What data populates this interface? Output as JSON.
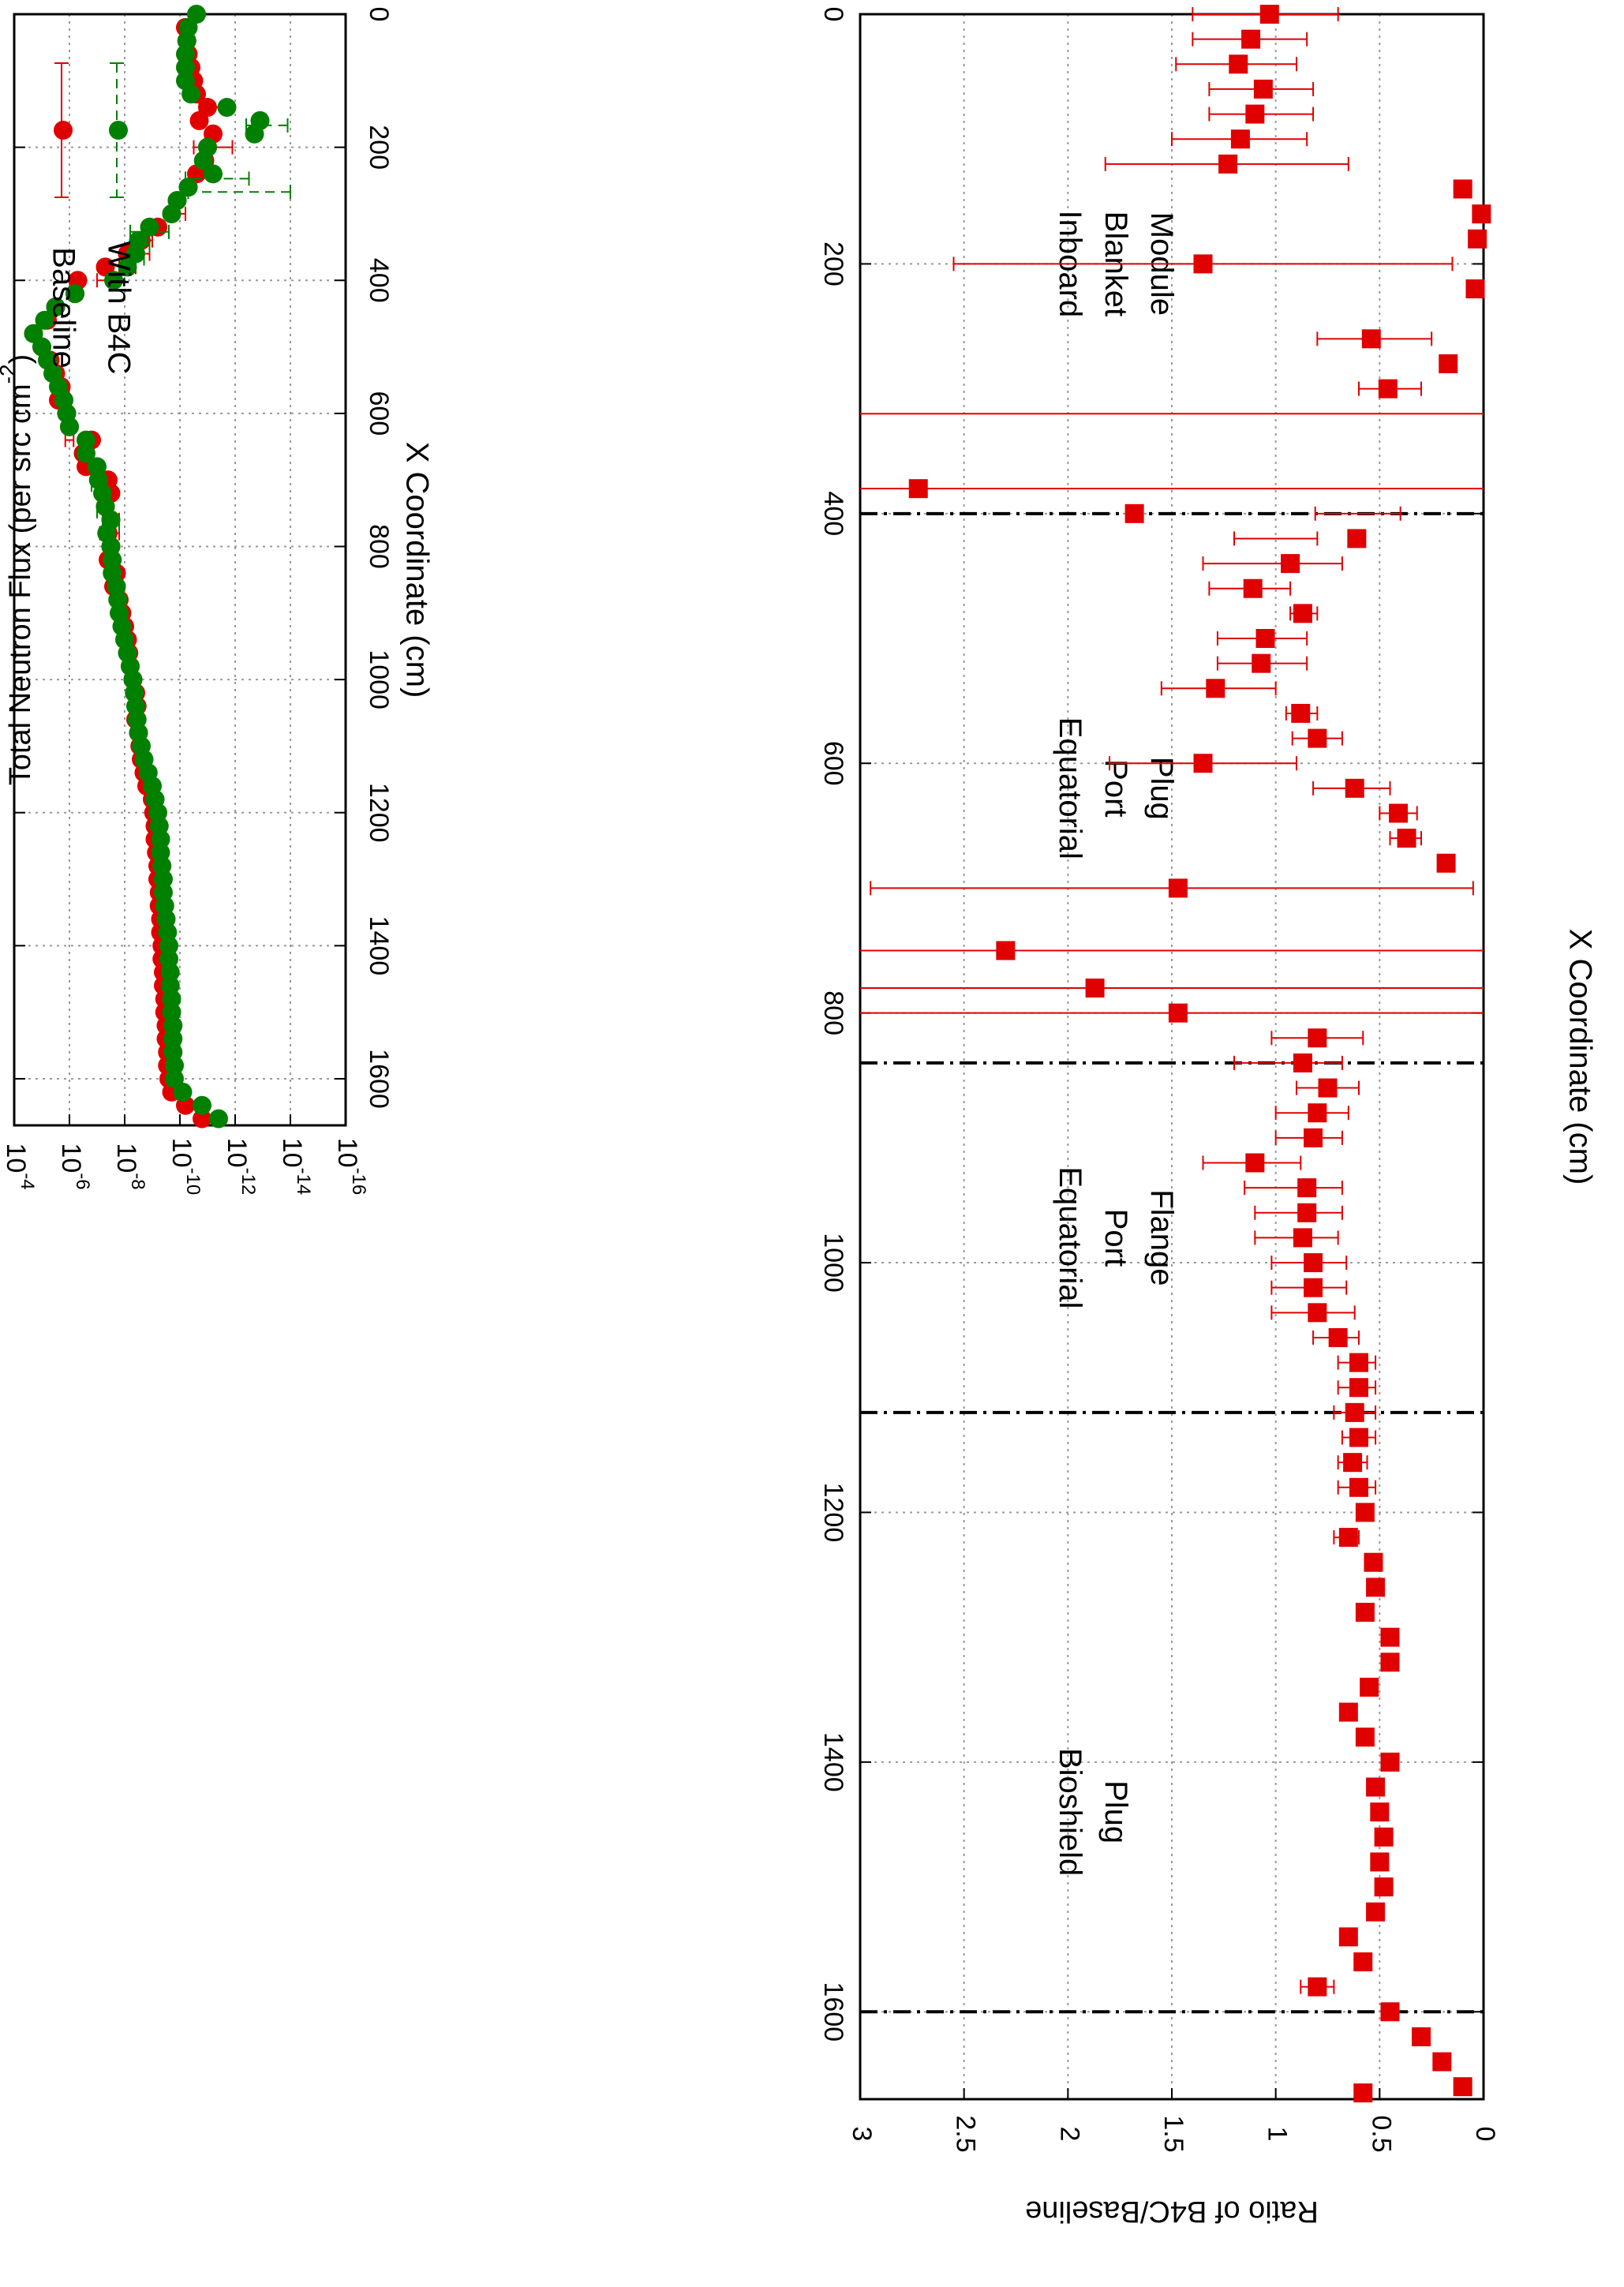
{
  "chart_data": [
    {
      "type": "scatter",
      "orientation": "rotated-90-clockwise",
      "xlabel": "X Coordinate (cm)",
      "ylabel": "Total Neutron Flux (per src cm",
      "ylabel_exp": "-2",
      "ylabel_close": ")",
      "xlim": [
        0,
        1670
      ],
      "ylim_log10": [
        -16,
        -4
      ],
      "y_scale": "log",
      "xticks": [
        "0",
        "200",
        "400",
        "600",
        "800",
        "1000",
        "1200",
        "1400",
        "1600"
      ],
      "yticks": [
        {
          "base": "10",
          "exp": "-16"
        },
        {
          "base": "10",
          "exp": "-14"
        },
        {
          "base": "10",
          "exp": "-12"
        },
        {
          "base": "10",
          "exp": "-10"
        },
        {
          "base": "10",
          "exp": "-8"
        },
        {
          "base": "10",
          "exp": "-6"
        },
        {
          "base": "10",
          "exp": "-4"
        }
      ],
      "grid": true,
      "legend_position": "top-right",
      "series": [
        {
          "name": "Baseline",
          "color": "#e00000",
          "marker": "circle",
          "x": [
            20,
            40,
            60,
            80,
            100,
            120,
            140,
            160,
            180,
            200,
            220,
            240,
            260,
            280,
            300,
            320,
            340,
            360,
            380,
            400,
            420,
            440,
            460,
            480,
            500,
            520,
            540,
            560,
            580,
            600,
            620,
            640,
            660,
            680,
            700,
            720,
            740,
            760,
            780,
            800,
            820,
            840,
            860,
            880,
            900,
            920,
            940,
            960,
            980,
            1000,
            1020,
            1040,
            1060,
            1080,
            1100,
            1120,
            1140,
            1160,
            1180,
            1200,
            1220,
            1240,
            1260,
            1280,
            1300,
            1320,
            1340,
            1360,
            1380,
            1400,
            1420,
            1440,
            1460,
            1480,
            1500,
            1520,
            1540,
            1560,
            1580,
            1600,
            1620,
            1640,
            1660
          ],
          "log10_y": [
            -10.2,
            -10.25,
            -10.3,
            -10.4,
            -10.5,
            -10.6,
            -11.0,
            -10.7,
            -11.2,
            -11.0,
            -10.9,
            -10.6,
            -10.3,
            -9.9,
            -9.7,
            -9.2,
            -8.6,
            -8.1,
            -7.3,
            -6.3,
            -6.2,
            -5.5,
            -5.2,
            -4.7,
            -5.0,
            -5.3,
            -5.5,
            -5.7,
            -5.6,
            -5.9,
            -6.0,
            -6.8,
            -6.5,
            -6.6,
            -7.4,
            -7.5,
            -7.3,
            -7.5,
            -7.4,
            -7.5,
            -7.4,
            -7.7,
            -7.6,
            -7.8,
            -7.9,
            -8.0,
            -8.1,
            -8.15,
            -8.2,
            -8.3,
            -8.4,
            -8.45,
            -8.4,
            -8.5,
            -8.55,
            -8.6,
            -8.7,
            -8.8,
            -9.0,
            -9.05,
            -9.1,
            -9.1,
            -9.15,
            -9.2,
            -9.2,
            -9.25,
            -9.25,
            -9.3,
            -9.3,
            -9.35,
            -9.35,
            -9.4,
            -9.4,
            -9.45,
            -9.45,
            -9.5,
            -9.5,
            -9.55,
            -9.55,
            -9.6,
            -9.7,
            -10.2,
            -10.8
          ],
          "err_x": [
            140,
            200,
            240,
            300,
            320,
            340,
            360,
            380,
            400,
            640,
            660,
            680,
            700,
            720,
            740,
            760,
            780,
            800
          ],
          "err_lo_log10": [
            -11.5,
            -11.9,
            -10.8,
            -10.2,
            -9.4,
            -9.0,
            -8.9,
            -8.4,
            -7.6,
            -6.15,
            -6.7,
            -6.9,
            -7.5,
            -7.6,
            -7.5,
            -7.8,
            -7.8,
            -7.6
          ],
          "err_hi_log10": [
            -10.7,
            -10.5,
            -10.4,
            -9.6,
            -8.9,
            -8.4,
            -8.4,
            -7.8,
            -7.0,
            -5.85,
            -6.3,
            -6.4,
            -7.2,
            -7.4,
            -7.2,
            -7.2,
            -7.1,
            -7.4
          ]
        },
        {
          "name": "With B4C",
          "color": "#008000",
          "marker": "circle",
          "x": [
            0,
            20,
            40,
            60,
            80,
            100,
            120,
            140,
            160,
            180,
            200,
            220,
            240,
            260,
            280,
            300,
            320,
            340,
            360,
            380,
            400,
            420,
            440,
            460,
            480,
            500,
            520,
            540,
            560,
            580,
            600,
            620,
            640,
            660,
            680,
            700,
            720,
            740,
            760,
            780,
            800,
            820,
            840,
            860,
            880,
            900,
            920,
            940,
            960,
            980,
            1000,
            1020,
            1040,
            1060,
            1080,
            1100,
            1120,
            1140,
            1160,
            1180,
            1200,
            1220,
            1240,
            1260,
            1280,
            1300,
            1320,
            1340,
            1360,
            1380,
            1400,
            1420,
            1440,
            1460,
            1480,
            1500,
            1520,
            1540,
            1560,
            1580,
            1600,
            1620,
            1640,
            1660
          ],
          "log10_y": [
            -10.6,
            -10.3,
            -10.25,
            -10.2,
            -10.2,
            -10.2,
            -10.4,
            -11.7,
            -12.9,
            -12.7,
            -11.0,
            -10.85,
            -11.2,
            -10.3,
            -9.9,
            -9.7,
            -8.9,
            -8.5,
            -8.4,
            -8.1,
            -7.6,
            -6.2,
            -5.5,
            -5.1,
            -4.7,
            -5.0,
            -5.2,
            -5.4,
            -5.6,
            -5.8,
            -5.9,
            -6.0,
            -6.6,
            -6.6,
            -7.0,
            -7.05,
            -7.2,
            -7.3,
            -7.5,
            -7.35,
            -7.5,
            -7.55,
            -7.55,
            -7.7,
            -7.75,
            -7.8,
            -7.9,
            -8.0,
            -8.1,
            -8.2,
            -8.3,
            -8.35,
            -8.4,
            -8.45,
            -8.5,
            -8.6,
            -8.7,
            -8.85,
            -9.0,
            -9.1,
            -9.2,
            -9.25,
            -9.3,
            -9.3,
            -9.35,
            -9.4,
            -9.4,
            -9.45,
            -9.5,
            -9.55,
            -9.6,
            -9.6,
            -9.65,
            -9.65,
            -9.7,
            -9.7,
            -9.75,
            -9.75,
            -9.75,
            -9.8,
            -9.8,
            -10.1,
            -10.8,
            -11.4,
            -12.1
          ],
          "err_x": [
            160,
            260,
            240,
            320,
            340,
            360,
            700,
            740,
            760
          ],
          "err_lo_log10": [
            -13.9,
            -14.0,
            -12.5,
            -9.6,
            -8.9,
            -8.7,
            -7.3,
            -7.5,
            -7.8
          ],
          "err_hi_log10": [
            -12.4,
            -10.3,
            -10.2,
            -8.2,
            -8.3,
            -8.1,
            -6.8,
            -7.0,
            -7.2
          ]
        }
      ]
    },
    {
      "type": "scatter",
      "orientation": "rotated-90-clockwise",
      "xlabel": "X Coordinate (cm)",
      "ylabel": "Ratio of B4C/Baseline",
      "xlim": [
        0,
        1670
      ],
      "ylim": [
        0,
        3
      ],
      "xticks": [
        "0",
        "200",
        "400",
        "600",
        "800",
        "1000",
        "1200",
        "1400",
        "1600"
      ],
      "yticks": [
        "0",
        "0.5",
        "1",
        "1.5",
        "2",
        "2.5",
        "3"
      ],
      "grid": true,
      "region_boundaries_x": [
        400,
        840,
        1120,
        1600
      ],
      "region_labels": [
        {
          "lines": [
            "Inboard",
            "Blanket",
            "Module"
          ],
          "x": 200,
          "y": 2.0
        },
        {
          "lines": [
            "Equatorial",
            "Port",
            "Plug"
          ],
          "x": 620,
          "y": 2.0
        },
        {
          "lines": [
            "Equatorial",
            "Port",
            "Flange"
          ],
          "x": 980,
          "y": 2.0
        },
        {
          "lines": [
            "Bioshield",
            "Plug"
          ],
          "x": 1440,
          "y": 2.0
        }
      ],
      "series": [
        {
          "name": "",
          "color": "#e00000",
          "marker": "square",
          "x": [
            0,
            20,
            40,
            60,
            80,
            100,
            120,
            140,
            160,
            180,
            200,
            220,
            260,
            280,
            300,
            380,
            400,
            420,
            440,
            460,
            480,
            500,
            520,
            540,
            560,
            580,
            600,
            620,
            640,
            660,
            680,
            700,
            750,
            780,
            800,
            820,
            840,
            860,
            880,
            900,
            920,
            940,
            960,
            980,
            1000,
            1020,
            1040,
            1060,
            1080,
            1100,
            1120,
            1140,
            1160,
            1180,
            1200,
            1220,
            1240,
            1260,
            1280,
            1300,
            1320,
            1340,
            1360,
            1380,
            1400,
            1420,
            1440,
            1460,
            1480,
            1500,
            1520,
            1540,
            1560,
            1580,
            1600,
            1620,
            1640,
            1660,
            1680
          ],
          "y": [
            1.03,
            1.12,
            1.18,
            1.06,
            1.1,
            1.17,
            1.23,
            0.1,
            0.01,
            0.03,
            1.35,
            0.04,
            0.54,
            0.17,
            0.46,
            2.72,
            1.68,
            0.61,
            0.93,
            1.11,
            0.87,
            1.05,
            1.07,
            1.29,
            0.88,
            0.8,
            1.35,
            0.62,
            0.41,
            0.37,
            0.18,
            1.47,
            2.3,
            1.87,
            1.47,
            0.8,
            0.87,
            0.75,
            0.8,
            0.82,
            1.1,
            0.85,
            0.85,
            0.87,
            0.82,
            0.82,
            0.8,
            0.7,
            0.6,
            0.6,
            0.62,
            0.6,
            0.63,
            0.6,
            0.57,
            0.65,
            0.53,
            0.52,
            0.57,
            0.45,
            0.45,
            0.55,
            0.65,
            0.57,
            0.45,
            0.52,
            0.5,
            0.48,
            0.5,
            0.48,
            0.52,
            0.65,
            0.58,
            0.8,
            0.45,
            0.3,
            0.2,
            0.1,
            0.58
          ],
          "err_x": [
            0,
            20,
            40,
            60,
            80,
            100,
            120,
            200,
            260,
            300,
            320,
            380,
            400,
            420,
            440,
            460,
            480,
            500,
            520,
            540,
            560,
            580,
            600,
            620,
            640,
            660,
            700,
            750,
            780,
            800,
            820,
            840,
            860,
            880,
            900,
            920,
            940,
            960,
            980,
            1000,
            1020,
            1040,
            1060,
            1080,
            1100,
            1120,
            1140,
            1160,
            1180,
            1220,
            1580
          ],
          "err_lo": [
            0.7,
            0.85,
            0.9,
            0.82,
            0.82,
            0.85,
            0.65,
            0.15,
            0.25,
            0.3,
            0.0,
            0.0,
            0.4,
            0.8,
            0.68,
            0.93,
            0.8,
            0.85,
            0.85,
            1.0,
            0.8,
            0.68,
            0.9,
            0.45,
            0.32,
            0.3,
            0.05,
            0.0,
            0.0,
            0.0,
            0.58,
            0.68,
            0.6,
            0.65,
            0.68,
            0.88,
            0.68,
            0.68,
            0.7,
            0.66,
            0.66,
            0.62,
            0.6,
            0.52,
            0.52,
            0.52,
            0.52,
            0.56,
            0.52,
            0.6,
            0.72
          ],
          "err_hi": [
            1.4,
            1.4,
            1.48,
            1.32,
            1.32,
            1.5,
            1.82,
            2.55,
            0.8,
            0.6,
            3.0,
            3.0,
            0.81,
            1.2,
            1.35,
            1.32,
            0.93,
            1.28,
            1.28,
            1.55,
            0.95,
            0.92,
            1.8,
            0.82,
            0.5,
            0.45,
            2.95,
            3.0,
            3.0,
            3.0,
            1.02,
            1.2,
            0.9,
            1.0,
            1.0,
            1.35,
            1.15,
            1.1,
            1.1,
            1.02,
            1.02,
            1.02,
            0.82,
            0.7,
            0.7,
            0.72,
            0.68,
            0.7,
            0.7,
            0.72,
            0.88
          ]
        }
      ]
    }
  ]
}
